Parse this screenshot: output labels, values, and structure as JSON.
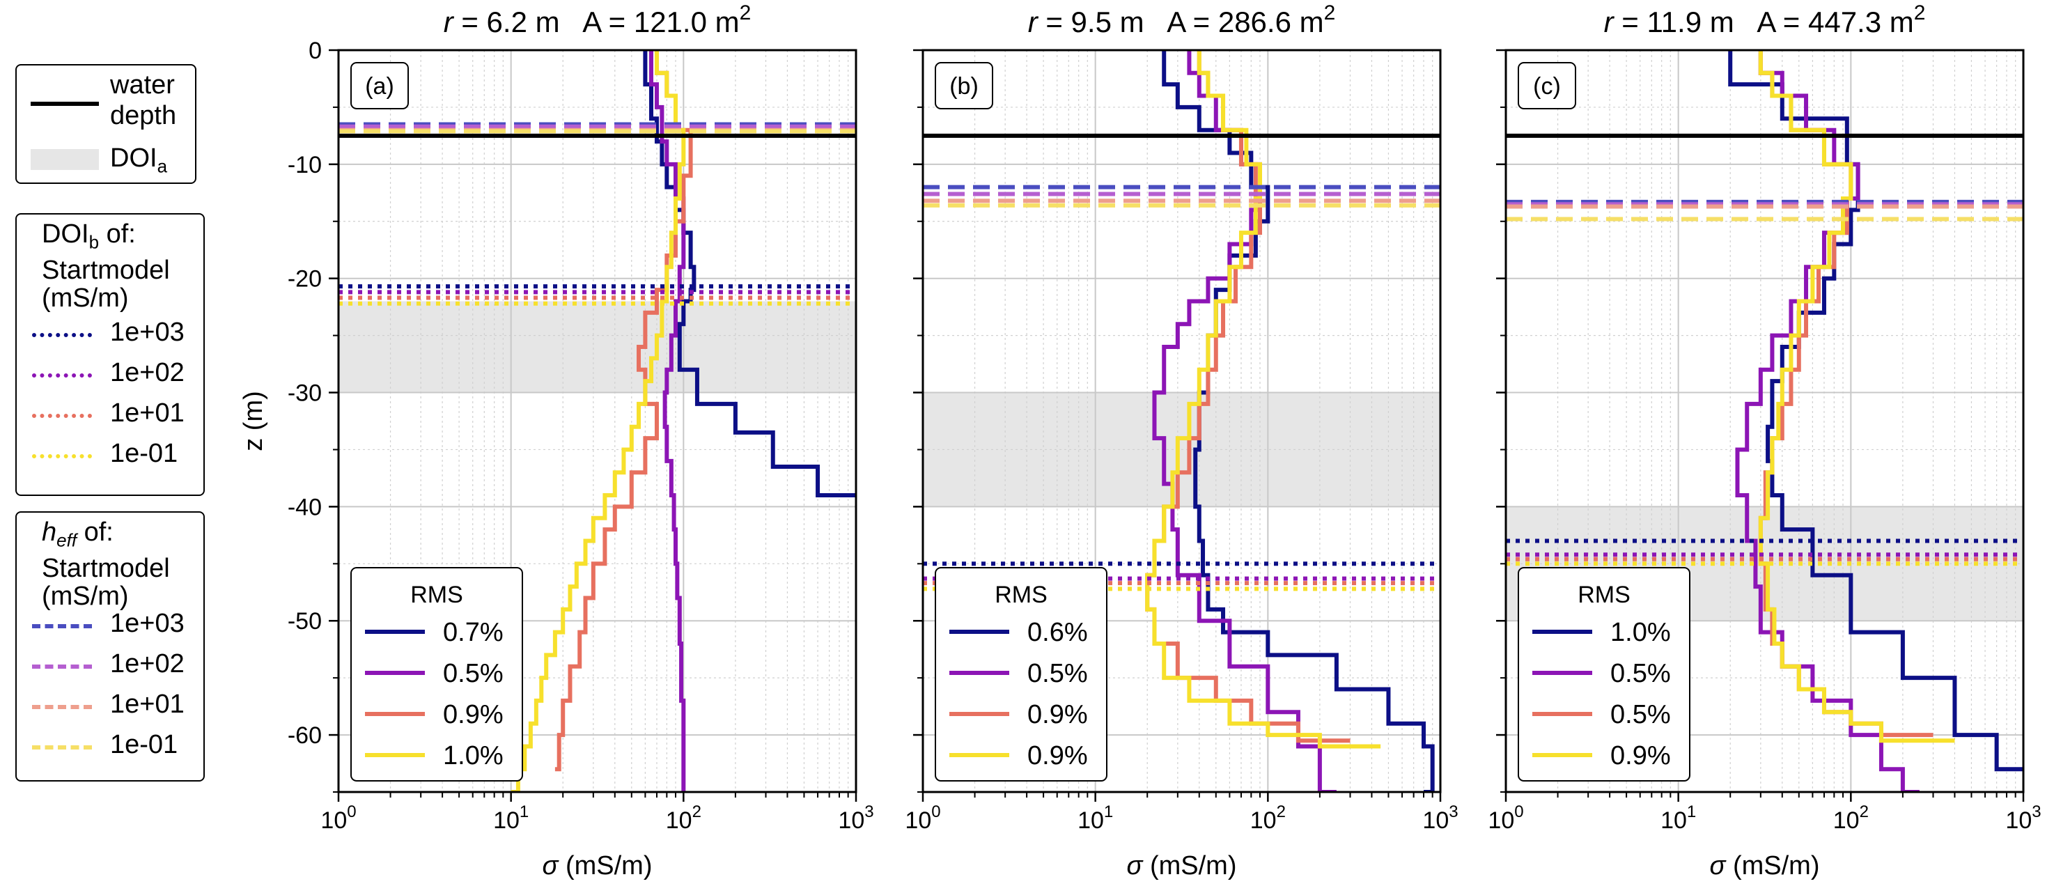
{
  "colors": {
    "c1e3": "#0c0f86",
    "c1e2": "#8c15b5",
    "c1e1": "#e7705f",
    "c1em1": "#f7e02c",
    "c1e3_dash": "#4a4dc0",
    "c1e2_dash": "#b55fd0",
    "c1e1_dash": "#ee9f8d",
    "c1em1_dash": "#f6df66",
    "water": "#000000",
    "doi_fill": "#e6e6e6"
  },
  "legends": {
    "main": {
      "water_depth_line1": "water",
      "water_depth_line2": "depth",
      "doi_a": "DOI",
      "doi_a_sub": "a"
    },
    "doib": {
      "title_main": "DOI",
      "title_sub": "b",
      "title_rest": " of:",
      "line2": "Startmodel",
      "line3": "(mS/m)",
      "items": [
        "1e+03",
        "1e+02",
        "1e+01",
        "1e-01"
      ]
    },
    "heff": {
      "title_h": "h",
      "title_sub": "eff",
      "title_rest": " of:",
      "line2": "Startmodel",
      "line3": "(mS/m)",
      "items": [
        "1e+03",
        "1e+02",
        "1e+01",
        "1e-01"
      ]
    }
  },
  "chart_data": [
    {
      "type": "line",
      "panel_label": "(a)",
      "title_r": "6.2",
      "title_A": "121.0",
      "xlabel": "σ (mS/m)",
      "ylabel": "z (m)",
      "xscale": "log",
      "xlim": [
        1,
        1000
      ],
      "ylim": [
        -65,
        0
      ],
      "yticks": [
        0,
        -10,
        -20,
        -30,
        -40,
        -50,
        -60
      ],
      "yticklabels": [
        "0",
        "-10",
        "-20",
        "-30",
        "-40",
        "-50",
        "-60"
      ],
      "grid": true,
      "water_depth": -7.5,
      "doi_a": [
        -22,
        -30
      ],
      "doi_b": [
        -20.7,
        -21.2,
        -21.7,
        -22.2
      ],
      "h_eff": [
        -6.5,
        -6.7,
        -7.0,
        -7.1
      ],
      "rms_title": "RMS",
      "rms": [
        "0.7%",
        "0.5%",
        "0.9%",
        "1.0%"
      ],
      "series": [
        {
          "name": "0.7%",
          "color_key": "c1e3",
          "sigma": [
            60,
            65,
            70,
            75,
            80,
            90,
            100,
            110,
            115,
            110,
            100,
            95,
            95,
            120,
            200,
            330,
            600,
            1000
          ],
          "z": [
            0,
            -3,
            -6,
            -8,
            -10,
            -12,
            -14,
            -16,
            -19,
            -21,
            -22,
            -24,
            -25,
            -28,
            -31,
            -33.5,
            -36.5,
            -39
          ]
        },
        {
          "name": "0.5%",
          "color_key": "c1e2",
          "sigma": [
            65,
            70,
            75,
            80,
            90,
            100,
            100,
            95,
            90,
            85,
            80,
            78,
            80,
            85,
            88,
            90,
            92,
            95,
            97,
            100,
            100
          ],
          "z": [
            0,
            -3,
            -5,
            -8,
            -10,
            -13,
            -16,
            -19,
            -22,
            -25,
            -28,
            -30,
            -33,
            -36,
            -39,
            -42,
            -45,
            -48,
            -52,
            -57,
            -65
          ]
        },
        {
          "name": "0.9%",
          "color_key": "c1e1",
          "sigma": [
            70,
            80,
            90,
            110,
            100,
            90,
            80,
            70,
            60,
            55,
            60,
            70,
            60,
            50,
            40,
            35,
            30,
            27,
            25,
            22,
            20,
            19,
            18
          ],
          "z": [
            0,
            -2,
            -4,
            -7,
            -11,
            -15,
            -18,
            -21,
            -23,
            -26,
            -28,
            -31,
            -34,
            -37,
            -40,
            -42,
            -45,
            -48,
            -51,
            -54,
            -57,
            -60,
            -63
          ]
        },
        {
          "name": "1.0%",
          "color_key": "c1em1",
          "sigma": [
            70,
            80,
            90,
            100,
            95,
            90,
            85,
            80,
            75,
            70,
            65,
            60,
            55,
            50,
            45,
            40,
            35,
            30,
            27,
            24,
            22,
            20,
            18,
            16,
            15,
            14,
            13,
            12,
            11,
            10
          ],
          "z": [
            0,
            -2,
            -4,
            -7,
            -10,
            -13,
            -16,
            -19,
            -22,
            -25,
            -27,
            -29,
            -31,
            -33,
            -35,
            -37,
            -39,
            -41,
            -43,
            -45,
            -47,
            -49,
            -51,
            -53,
            -55,
            -57,
            -59,
            -61,
            -63,
            -65
          ]
        }
      ]
    },
    {
      "type": "line",
      "panel_label": "(b)",
      "title_r": "9.5",
      "title_A": "286.6",
      "xlabel": "σ (mS/m)",
      "ylabel": "",
      "xscale": "log",
      "xlim": [
        1,
        1000
      ],
      "ylim": [
        -65,
        0
      ],
      "yticks": [
        0,
        -10,
        -20,
        -30,
        -40,
        -50,
        -60
      ],
      "yticklabels": [],
      "grid": true,
      "water_depth": -7.5,
      "doi_a": [
        -30,
        -40
      ],
      "doi_b": [
        -45.0,
        -46.3,
        -46.7,
        -47.2
      ],
      "h_eff": [
        -12.0,
        -12.6,
        -13.2,
        -13.6
      ],
      "rms_title": "RMS",
      "rms": [
        "0.6%",
        "0.5%",
        "0.9%",
        "0.9%"
      ],
      "series": [
        {
          "name": "0.6%",
          "color_key": "c1e3",
          "sigma": [
            25,
            30,
            40,
            60,
            80,
            100,
            85,
            60,
            50,
            45,
            40,
            38,
            40,
            42,
            45,
            55,
            100,
            250,
            500,
            800,
            900,
            800
          ],
          "z": [
            0,
            -3,
            -5,
            -7,
            -9,
            -12,
            -15,
            -18,
            -21,
            -25,
            -30,
            -35,
            -40,
            -43,
            -46,
            -49,
            -51,
            -53,
            -56,
            -59,
            -61,
            -65
          ]
        },
        {
          "name": "0.5%",
          "color_key": "c1e2",
          "sigma": [
            35,
            40,
            50,
            70,
            90,
            80,
            60,
            45,
            35,
            30,
            25,
            22,
            25,
            28,
            30,
            40,
            60,
            100,
            150,
            200,
            250
          ],
          "z": [
            0,
            -2,
            -4,
            -7,
            -10,
            -14,
            -17,
            -20,
            -22,
            -24,
            -26,
            -30,
            -34,
            -38,
            -42,
            -46,
            -50,
            -54,
            -58,
            -61,
            -65
          ]
        },
        {
          "name": "0.9%",
          "color_key": "c1e1",
          "sigma": [
            40,
            45,
            55,
            70,
            85,
            90,
            80,
            65,
            55,
            50,
            45,
            40,
            35,
            30,
            25,
            22,
            20,
            22,
            30,
            50,
            80,
            150,
            300
          ],
          "z": [
            0,
            -2,
            -4,
            -7,
            -10,
            -13,
            -16,
            -19,
            -22,
            -25,
            -28,
            -31,
            -34,
            -37,
            -40,
            -43,
            -46,
            -49,
            -52,
            -55,
            -57,
            -59,
            -60.5
          ]
        },
        {
          "name": "0.9%",
          "color_key": "c1em1",
          "sigma": [
            40,
            45,
            55,
            75,
            90,
            85,
            70,
            60,
            50,
            45,
            40,
            35,
            30,
            28,
            25,
            22,
            20,
            22,
            25,
            35,
            60,
            100,
            200,
            450
          ],
          "z": [
            0,
            -2,
            -4,
            -7,
            -10,
            -13,
            -16,
            -19,
            -22,
            -25,
            -28,
            -31,
            -34,
            -37,
            -40,
            -43,
            -46,
            -49,
            -52,
            -55,
            -57,
            -59,
            -60,
            -61
          ]
        }
      ]
    },
    {
      "type": "line",
      "panel_label": "(c)",
      "title_r": "11.9",
      "title_A": "447.3",
      "xlabel": "σ (mS/m)",
      "ylabel": "",
      "xscale": "log",
      "xlim": [
        1,
        1000
      ],
      "ylim": [
        -65,
        0
      ],
      "yticks": [
        0,
        -10,
        -20,
        -30,
        -40,
        -50,
        -60
      ],
      "yticklabels": [],
      "grid": true,
      "water_depth": -7.5,
      "doi_a": [
        -40,
        -50
      ],
      "doi_b": [
        -43.0,
        -44.2,
        -44.6,
        -45.0
      ],
      "h_eff": [
        -13.3,
        -13.5,
        -13.7,
        -14.8
      ],
      "rms_title": "RMS",
      "rms": [
        "1.0%",
        "0.5%",
        "0.5%",
        "0.9%"
      ],
      "series": [
        {
          "name": "1.0%",
          "color_key": "c1e3",
          "sigma": [
            20,
            40,
            95,
            110,
            100,
            80,
            70,
            50,
            40,
            35,
            33,
            35,
            40,
            60,
            100,
            200,
            400,
            700,
            1000
          ],
          "z": [
            0,
            -3,
            -6,
            -10,
            -14,
            -17,
            -20,
            -23,
            -26,
            -29,
            -33,
            -36,
            -39,
            -42,
            -46,
            -51,
            -55,
            -60,
            -63
          ]
        },
        {
          "name": "0.5%",
          "color_key": "c1e2",
          "sigma": [
            30,
            40,
            55,
            80,
            110,
            95,
            70,
            55,
            45,
            35,
            30,
            25,
            22,
            25,
            28,
            30,
            40,
            60,
            100,
            150,
            200,
            250
          ],
          "z": [
            0,
            -2,
            -4,
            -7,
            -10,
            -13,
            -16,
            -19,
            -22,
            -25,
            -28,
            -31,
            -35,
            -39,
            -43,
            -47,
            -51,
            -54,
            -57,
            -60,
            -63,
            -65
          ]
        },
        {
          "name": "0.5%",
          "color_key": "c1e1",
          "sigma": [
            30,
            35,
            45,
            70,
            100,
            95,
            80,
            65,
            55,
            50,
            45,
            40,
            35,
            32,
            30,
            32,
            35,
            40,
            50,
            70,
            100,
            150,
            300
          ],
          "z": [
            0,
            -2,
            -4,
            -7,
            -10,
            -13,
            -16,
            -19,
            -22,
            -25,
            -28,
            -31,
            -34,
            -37,
            -41,
            -45,
            -49,
            -52,
            -54,
            -56,
            -58,
            -59,
            -60
          ]
        },
        {
          "name": "0.9%",
          "color_key": "c1em1",
          "sigma": [
            30,
            35,
            45,
            70,
            100,
            90,
            75,
            60,
            50,
            45,
            40,
            38,
            35,
            33,
            30,
            33,
            36,
            40,
            50,
            70,
            100,
            150,
            400
          ],
          "z": [
            0,
            -2,
            -4,
            -7,
            -10,
            -13,
            -16,
            -19,
            -22,
            -25,
            -28,
            -31,
            -34,
            -37,
            -41,
            -45,
            -49,
            -52,
            -54,
            -56,
            -58,
            -59,
            -60.5
          ]
        }
      ]
    }
  ]
}
